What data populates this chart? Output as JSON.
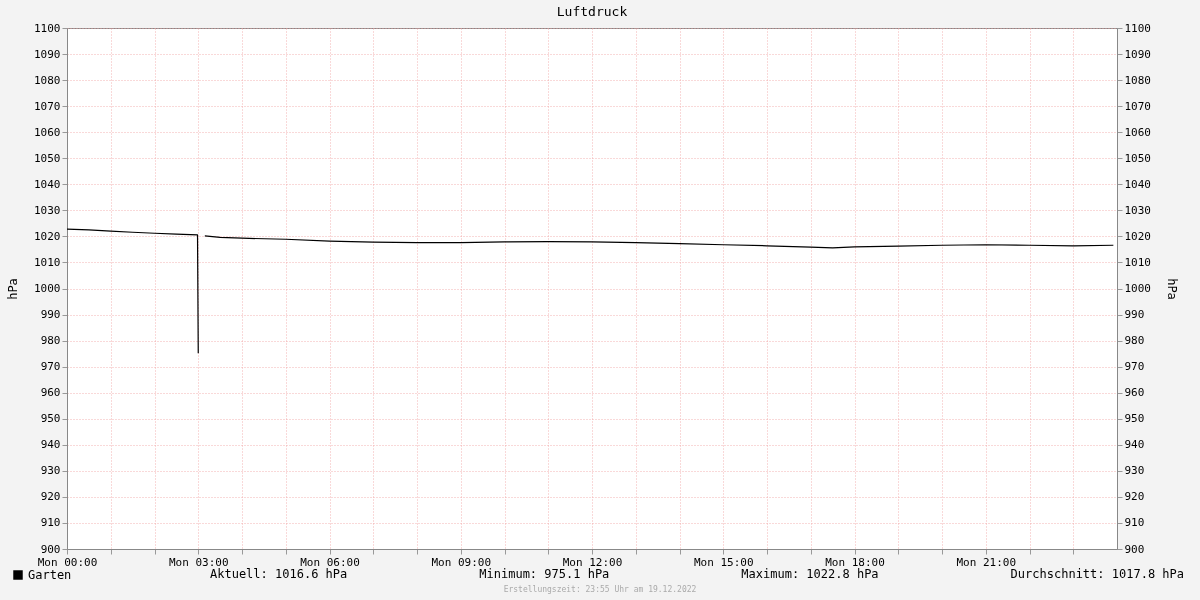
{
  "chart_data": {
    "type": "line",
    "title": "Luftdruck",
    "ylabel": "hPa",
    "y2label": "hPa",
    "x": [
      "2022-12-19T00:00",
      "2022-12-19T00:30",
      "2022-12-19T01:00",
      "2022-12-19T01:30",
      "2022-12-19T02:00",
      "2022-12-19T02:30",
      "2022-12-19T02:59",
      "2022-12-19T03:00",
      "2022-12-19T03:05",
      "2022-12-19T03:09",
      "2022-12-19T03:30",
      "2022-12-19T04:00",
      "2022-12-19T05:00",
      "2022-12-19T06:00",
      "2022-12-19T07:00",
      "2022-12-19T08:00",
      "2022-12-19T09:00",
      "2022-12-19T10:00",
      "2022-12-19T11:00",
      "2022-12-19T12:00",
      "2022-12-19T13:00",
      "2022-12-19T14:00",
      "2022-12-19T15:00",
      "2022-12-19T16:00",
      "2022-12-19T17:00",
      "2022-12-19T17:30",
      "2022-12-19T18:00",
      "2022-12-19T19:00",
      "2022-12-19T20:00",
      "2022-12-19T21:00",
      "2022-12-19T22:00",
      "2022-12-19T23:00",
      "2022-12-19T23:55"
    ],
    "series": [
      {
        "name": "Garten",
        "color": "#000000",
        "values": [
          1022.8,
          1022.5,
          1022.0,
          1021.6,
          1021.2,
          1020.9,
          1020.6,
          975.1,
          null,
          1020.2,
          1019.6,
          1019.3,
          1018.9,
          1018.2,
          1017.8,
          1017.6,
          1017.6,
          1017.9,
          1018.0,
          1017.9,
          1017.6,
          1017.2,
          1016.8,
          1016.4,
          1015.9,
          1015.6,
          1016.0,
          1016.3,
          1016.6,
          1016.8,
          1016.6,
          1016.4,
          1016.6
        ]
      }
    ],
    "xlim": [
      "2022-12-19T00:00",
      "2022-12-20T00:00"
    ],
    "xticks": [
      {
        "value": "2022-12-19T00:00",
        "label": "Mon 00:00"
      },
      {
        "value": "2022-12-19T01:00",
        "label": null
      },
      {
        "value": "2022-12-19T02:00",
        "label": null
      },
      {
        "value": "2022-12-19T03:00",
        "label": "Mon 03:00"
      },
      {
        "value": "2022-12-19T04:00",
        "label": null
      },
      {
        "value": "2022-12-19T05:00",
        "label": null
      },
      {
        "value": "2022-12-19T06:00",
        "label": "Mon 06:00"
      },
      {
        "value": "2022-12-19T07:00",
        "label": null
      },
      {
        "value": "2022-12-19T08:00",
        "label": null
      },
      {
        "value": "2022-12-19T09:00",
        "label": "Mon 09:00"
      },
      {
        "value": "2022-12-19T10:00",
        "label": null
      },
      {
        "value": "2022-12-19T11:00",
        "label": null
      },
      {
        "value": "2022-12-19T12:00",
        "label": "Mon 12:00"
      },
      {
        "value": "2022-12-19T13:00",
        "label": null
      },
      {
        "value": "2022-12-19T14:00",
        "label": null
      },
      {
        "value": "2022-12-19T15:00",
        "label": "Mon 15:00"
      },
      {
        "value": "2022-12-19T16:00",
        "label": null
      },
      {
        "value": "2022-12-19T17:00",
        "label": null
      },
      {
        "value": "2022-12-19T18:00",
        "label": "Mon 18:00"
      },
      {
        "value": "2022-12-19T19:00",
        "label": null
      },
      {
        "value": "2022-12-19T20:00",
        "label": null
      },
      {
        "value": "2022-12-19T21:00",
        "label": "Mon 21:00"
      },
      {
        "value": "2022-12-19T22:00",
        "label": null
      },
      {
        "value": "2022-12-19T23:00",
        "label": null
      }
    ],
    "ylim": [
      900,
      1100
    ],
    "yticks": [
      900,
      910,
      920,
      930,
      940,
      950,
      960,
      970,
      980,
      990,
      1000,
      1010,
      1020,
      1030,
      1040,
      1050,
      1060,
      1070,
      1080,
      1090,
      1100
    ],
    "y2lim": [
      900,
      1100
    ],
    "y2ticks": [
      900,
      910,
      920,
      930,
      940,
      950,
      960,
      970,
      980,
      990,
      1000,
      1010,
      1020,
      1030,
      1040,
      1050,
      1060,
      1070,
      1080,
      1090,
      1100
    ],
    "grid": true,
    "legend": "bottom",
    "line_style": "solid",
    "annotations": [
      "Aktuell: 1016.6 hPa",
      "Minimum: 975.1 hPa",
      "Maximum: 1022.8 hPa",
      "Durchschnitt: 1017.8 hPa",
      "Erstellungszeit: 23:55 Uhr am 19.12.2022"
    ]
  }
}
